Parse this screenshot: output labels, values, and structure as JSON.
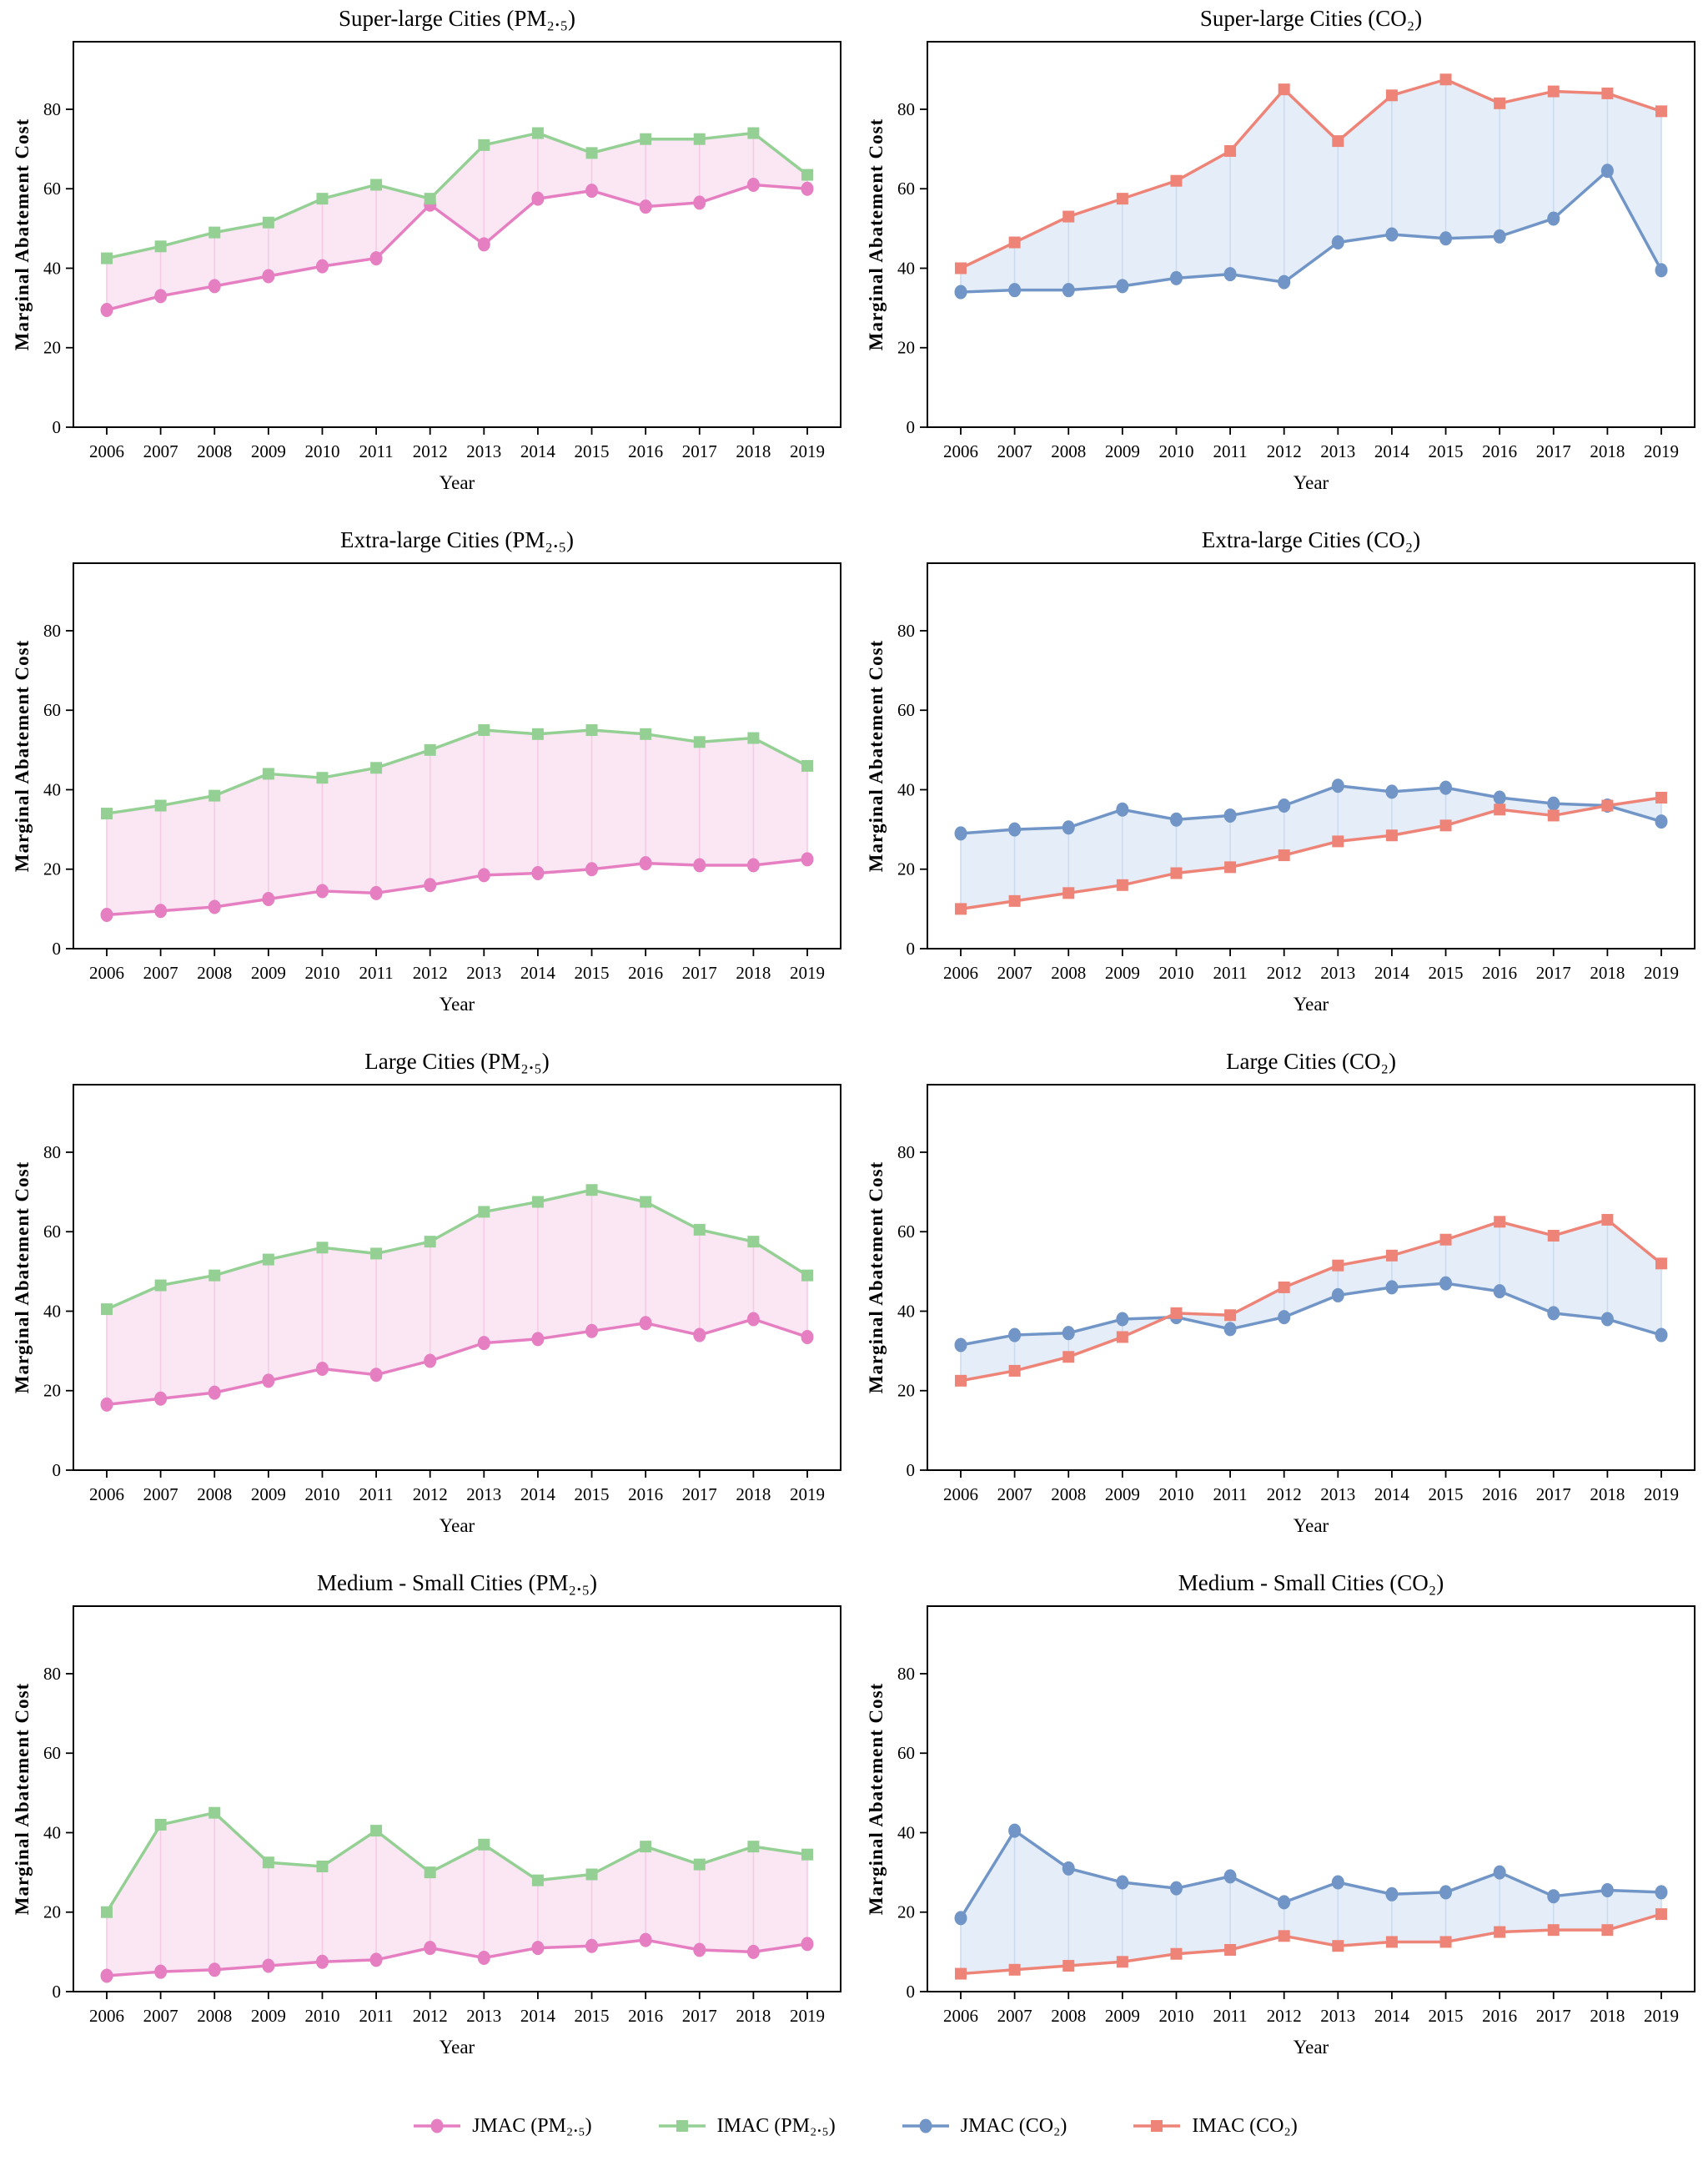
{
  "figure": {
    "ylabel": "Marginal Abatement Cost",
    "xlabel": "Year",
    "background": "#ffffff"
  },
  "legend": {
    "items": [
      {
        "key": "jmac-pm25",
        "label": "JMAC (PM₂.₅)",
        "color": "#E67FC2",
        "marker": "circle"
      },
      {
        "key": "imac-pm25",
        "label": "IMAC (PM₂.₅)",
        "color": "#94D094",
        "marker": "square"
      },
      {
        "key": "jmac-co2",
        "label": "JMAC (CO₂)",
        "color": "#7095C6",
        "marker": "circle"
      },
      {
        "key": "imac-co2",
        "label": "IMAC (CO₂)",
        "color": "#EE8478",
        "marker": "square"
      }
    ]
  },
  "chart_data": [
    {
      "type": "line",
      "key": "super-large-pm25",
      "title": "Super-large Cities (PM₂.₅)",
      "xlabel": "Year",
      "ylabel": "Marginal Abatement Cost",
      "ylim": [
        0,
        97
      ],
      "yticks": [
        0,
        20,
        40,
        60,
        80
      ],
      "categories": [
        "2006",
        "2007",
        "2008",
        "2009",
        "2010",
        "2011",
        "2012",
        "2013",
        "2014",
        "2015",
        "2016",
        "2017",
        "2018",
        "2019"
      ],
      "fill": "#FAE7F3",
      "connector": "#F5CBE6",
      "series": [
        {
          "name": "JMAC (PM₂.₅)",
          "marker": "circle",
          "color": "#E67FC2",
          "values": [
            29.5,
            33,
            35.5,
            38,
            40.5,
            42.5,
            56,
            46,
            57.5,
            59.5,
            55.5,
            56.5,
            61,
            60
          ]
        },
        {
          "name": "IMAC (PM₂.₅)",
          "marker": "square",
          "color": "#94D094",
          "values": [
            42.5,
            45.5,
            49,
            51.5,
            57.5,
            61,
            57.5,
            71,
            74,
            69,
            72.5,
            72.5,
            74,
            63.5
          ]
        }
      ]
    },
    {
      "type": "line",
      "key": "super-large-co2",
      "title": "Super-large Cities (CO₂)",
      "xlabel": "Year",
      "ylabel": "Marginal Abatement Cost",
      "ylim": [
        0,
        97
      ],
      "yticks": [
        0,
        20,
        40,
        60,
        80
      ],
      "categories": [
        "2006",
        "2007",
        "2008",
        "2009",
        "2010",
        "2011",
        "2012",
        "2013",
        "2014",
        "2015",
        "2016",
        "2017",
        "2018",
        "2019"
      ],
      "fill": "#E4EDF8",
      "connector": "#CBDCF0",
      "series": [
        {
          "name": "JMAC (CO₂)",
          "marker": "circle",
          "color": "#7095C6",
          "values": [
            34,
            34.5,
            34.5,
            35.5,
            37.5,
            38.5,
            36.5,
            46.5,
            48.5,
            47.5,
            48,
            52.5,
            64.5,
            39.5
          ]
        },
        {
          "name": "IMAC (CO₂)",
          "marker": "square",
          "color": "#EE8478",
          "values": [
            40,
            46.5,
            53,
            57.5,
            62,
            69.5,
            85,
            72,
            83.5,
            87.5,
            81.5,
            84.5,
            84,
            79.5
          ]
        }
      ]
    },
    {
      "type": "line",
      "key": "extra-large-pm25",
      "title": "Extra-large Cities (PM₂.₅)",
      "xlabel": "Year",
      "ylabel": "Marginal Abatement Cost",
      "ylim": [
        0,
        97
      ],
      "yticks": [
        0,
        20,
        40,
        60,
        80
      ],
      "categories": [
        "2006",
        "2007",
        "2008",
        "2009",
        "2010",
        "2011",
        "2012",
        "2013",
        "2014",
        "2015",
        "2016",
        "2017",
        "2018",
        "2019"
      ],
      "fill": "#FAE7F3",
      "connector": "#F5CBE6",
      "series": [
        {
          "name": "JMAC (PM₂.₅)",
          "marker": "circle",
          "color": "#E67FC2",
          "values": [
            8.5,
            9.5,
            10.5,
            12.5,
            14.5,
            14,
            16,
            18.5,
            19,
            20,
            21.5,
            21,
            21,
            22.5
          ]
        },
        {
          "name": "IMAC (PM₂.₅)",
          "marker": "square",
          "color": "#94D094",
          "values": [
            34,
            36,
            38.5,
            44,
            43,
            45.5,
            50,
            55,
            54,
            55,
            54,
            52,
            53,
            46
          ]
        }
      ]
    },
    {
      "type": "line",
      "key": "extra-large-co2",
      "title": "Extra-large Cities (CO₂)",
      "xlabel": "Year",
      "ylabel": "Marginal Abatement Cost",
      "ylim": [
        0,
        97
      ],
      "yticks": [
        0,
        20,
        40,
        60,
        80
      ],
      "categories": [
        "2006",
        "2007",
        "2008",
        "2009",
        "2010",
        "2011",
        "2012",
        "2013",
        "2014",
        "2015",
        "2016",
        "2017",
        "2018",
        "2019"
      ],
      "fill": "#E4EDF8",
      "connector": "#CBDCF0",
      "series": [
        {
          "name": "JMAC (CO₂)",
          "marker": "circle",
          "color": "#7095C6",
          "values": [
            29,
            30,
            30.5,
            35,
            32.5,
            33.5,
            36,
            41,
            39.5,
            40.5,
            38,
            36.5,
            36,
            32
          ]
        },
        {
          "name": "IMAC (CO₂)",
          "marker": "square",
          "color": "#EE8478",
          "values": [
            10,
            12,
            14,
            16,
            19,
            20.5,
            23.5,
            27,
            28.5,
            31,
            35,
            33.5,
            36,
            38
          ]
        }
      ]
    },
    {
      "type": "line",
      "key": "large-pm25",
      "title": "Large Cities (PM₂.₅)",
      "xlabel": "Year",
      "ylabel": "Marginal Abatement Cost",
      "ylim": [
        0,
        97
      ],
      "yticks": [
        0,
        20,
        40,
        60,
        80
      ],
      "categories": [
        "2006",
        "2007",
        "2008",
        "2009",
        "2010",
        "2011",
        "2012",
        "2013",
        "2014",
        "2015",
        "2016",
        "2017",
        "2018",
        "2019"
      ],
      "fill": "#FAE7F3",
      "connector": "#F5CBE6",
      "series": [
        {
          "name": "JMAC (PM₂.₅)",
          "marker": "circle",
          "color": "#E67FC2",
          "values": [
            16.5,
            18,
            19.5,
            22.5,
            25.5,
            24,
            27.5,
            32,
            33,
            35,
            37,
            34,
            38,
            33.5
          ]
        },
        {
          "name": "IMAC (PM₂.₅)",
          "marker": "square",
          "color": "#94D094",
          "values": [
            40.5,
            46.5,
            49,
            53,
            56,
            54.5,
            57.5,
            65,
            67.5,
            70.5,
            67.5,
            60.5,
            57.5,
            49
          ]
        }
      ]
    },
    {
      "type": "line",
      "key": "large-co2",
      "title": "Large Cities (CO₂)",
      "xlabel": "Year",
      "ylabel": "Marginal Abatement Cost",
      "ylim": [
        0,
        97
      ],
      "yticks": [
        0,
        20,
        40,
        60,
        80
      ],
      "categories": [
        "2006",
        "2007",
        "2008",
        "2009",
        "2010",
        "2011",
        "2012",
        "2013",
        "2014",
        "2015",
        "2016",
        "2017",
        "2018",
        "2019"
      ],
      "fill": "#E4EDF8",
      "connector": "#CBDCF0",
      "series": [
        {
          "name": "JMAC (CO₂)",
          "marker": "circle",
          "color": "#7095C6",
          "values": [
            31.5,
            34,
            34.5,
            38,
            38.5,
            35.5,
            38.5,
            44,
            46,
            47,
            45,
            39.5,
            38,
            34
          ]
        },
        {
          "name": "IMAC (CO₂)",
          "marker": "square",
          "color": "#EE8478",
          "values": [
            22.5,
            25,
            28.5,
            33.5,
            39.5,
            39,
            46,
            51.5,
            54,
            58,
            62.5,
            59,
            63,
            52
          ]
        }
      ]
    },
    {
      "type": "line",
      "key": "medium-small-pm25",
      "title": "Medium - Small Cities (PM₂.₅)",
      "xlabel": "Year",
      "ylabel": "Marginal Abatement Cost",
      "ylim": [
        0,
        97
      ],
      "yticks": [
        0,
        20,
        40,
        60,
        80
      ],
      "categories": [
        "2006",
        "2007",
        "2008",
        "2009",
        "2010",
        "2011",
        "2012",
        "2013",
        "2014",
        "2015",
        "2016",
        "2017",
        "2018",
        "2019"
      ],
      "fill": "#FAE7F3",
      "connector": "#F5CBE6",
      "series": [
        {
          "name": "JMAC (PM₂.₅)",
          "marker": "circle",
          "color": "#E67FC2",
          "values": [
            4,
            5,
            5.5,
            6.5,
            7.5,
            8,
            11,
            8.5,
            11,
            11.5,
            13,
            10.5,
            10,
            12
          ]
        },
        {
          "name": "IMAC (PM₂.₅)",
          "marker": "square",
          "color": "#94D094",
          "values": [
            20,
            42,
            45,
            32.5,
            31.5,
            40.5,
            30,
            37,
            28,
            29.5,
            36.5,
            32,
            36.5,
            34.5
          ]
        }
      ]
    },
    {
      "type": "line",
      "key": "medium-small-co2",
      "title": "Medium - Small Cities (CO₂)",
      "xlabel": "Year",
      "ylabel": "Marginal Abatement Cost",
      "ylim": [
        0,
        97
      ],
      "yticks": [
        0,
        20,
        40,
        60,
        80
      ],
      "categories": [
        "2006",
        "2007",
        "2008",
        "2009",
        "2010",
        "2011",
        "2012",
        "2013",
        "2014",
        "2015",
        "2016",
        "2017",
        "2018",
        "2019"
      ],
      "fill": "#E4EDF8",
      "connector": "#CBDCF0",
      "series": [
        {
          "name": "JMAC (CO₂)",
          "marker": "circle",
          "color": "#7095C6",
          "values": [
            18.5,
            40.5,
            31,
            27.5,
            26,
            29,
            22.5,
            27.5,
            24.5,
            25,
            30,
            24,
            25.5,
            25
          ]
        },
        {
          "name": "IMAC (CO₂)",
          "marker": "square",
          "color": "#EE8478",
          "values": [
            4.5,
            5.5,
            6.5,
            7.5,
            9.5,
            10.5,
            14,
            11.5,
            12.5,
            12.5,
            15,
            15.5,
            15.5,
            19.5
          ]
        }
      ]
    }
  ]
}
